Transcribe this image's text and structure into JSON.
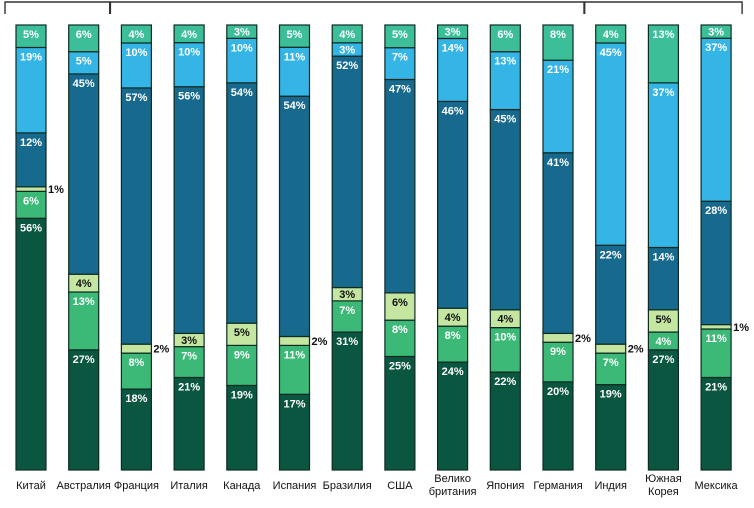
{
  "colors": {
    "seg0": "#0a5640",
    "seg1": "#3cb877",
    "seg2": "#c4e6a0",
    "seg3": "#17698e",
    "seg4": "#35b4e6",
    "seg5": "#3cbf98",
    "bracket": "#333333",
    "dark_text": "#ffffff",
    "light_text": "#111111"
  },
  "chart_data": {
    "type": "bar",
    "stacked": true,
    "normalized_percent": true,
    "grid": false,
    "legend": "none",
    "ylim": [
      0,
      100
    ],
    "categories": [
      "Китай",
      "Австралия",
      "Франция",
      "Италия",
      "Канада",
      "Испания",
      "Бразилия",
      "США",
      "Велико британия",
      "Япония",
      "Германия",
      "Индия",
      "Южная Корея",
      "Мексика"
    ],
    "category_groups": [
      [
        0,
        1
      ],
      [
        2,
        10
      ],
      [
        11,
        13
      ]
    ],
    "series": [
      {
        "values": [
          56,
          27,
          18,
          21,
          19,
          17,
          31,
          25,
          24,
          22,
          20,
          19,
          27,
          21
        ]
      },
      {
        "values": [
          6,
          13,
          8,
          7,
          9,
          11,
          7,
          8,
          8,
          10,
          9,
          7,
          4,
          11
        ]
      },
      {
        "values": [
          1,
          4,
          2,
          3,
          5,
          2,
          3,
          6,
          4,
          4,
          2,
          2,
          5,
          1
        ]
      },
      {
        "values": [
          12,
          45,
          57,
          56,
          54,
          54,
          52,
          47,
          46,
          45,
          41,
          22,
          14,
          28
        ]
      },
      {
        "values": [
          19,
          5,
          10,
          10,
          10,
          11,
          3,
          7,
          14,
          13,
          21,
          45,
          37,
          37
        ]
      },
      {
        "values": [
          5,
          6,
          4,
          4,
          3,
          5,
          4,
          5,
          3,
          6,
          8,
          4,
          13,
          3
        ]
      }
    ],
    "outside_labels": [
      [
        0,
        2
      ],
      [
        2,
        2
      ],
      [
        5,
        2
      ],
      [
        10,
        2
      ],
      [
        11,
        2
      ],
      [
        13,
        2
      ]
    ]
  }
}
